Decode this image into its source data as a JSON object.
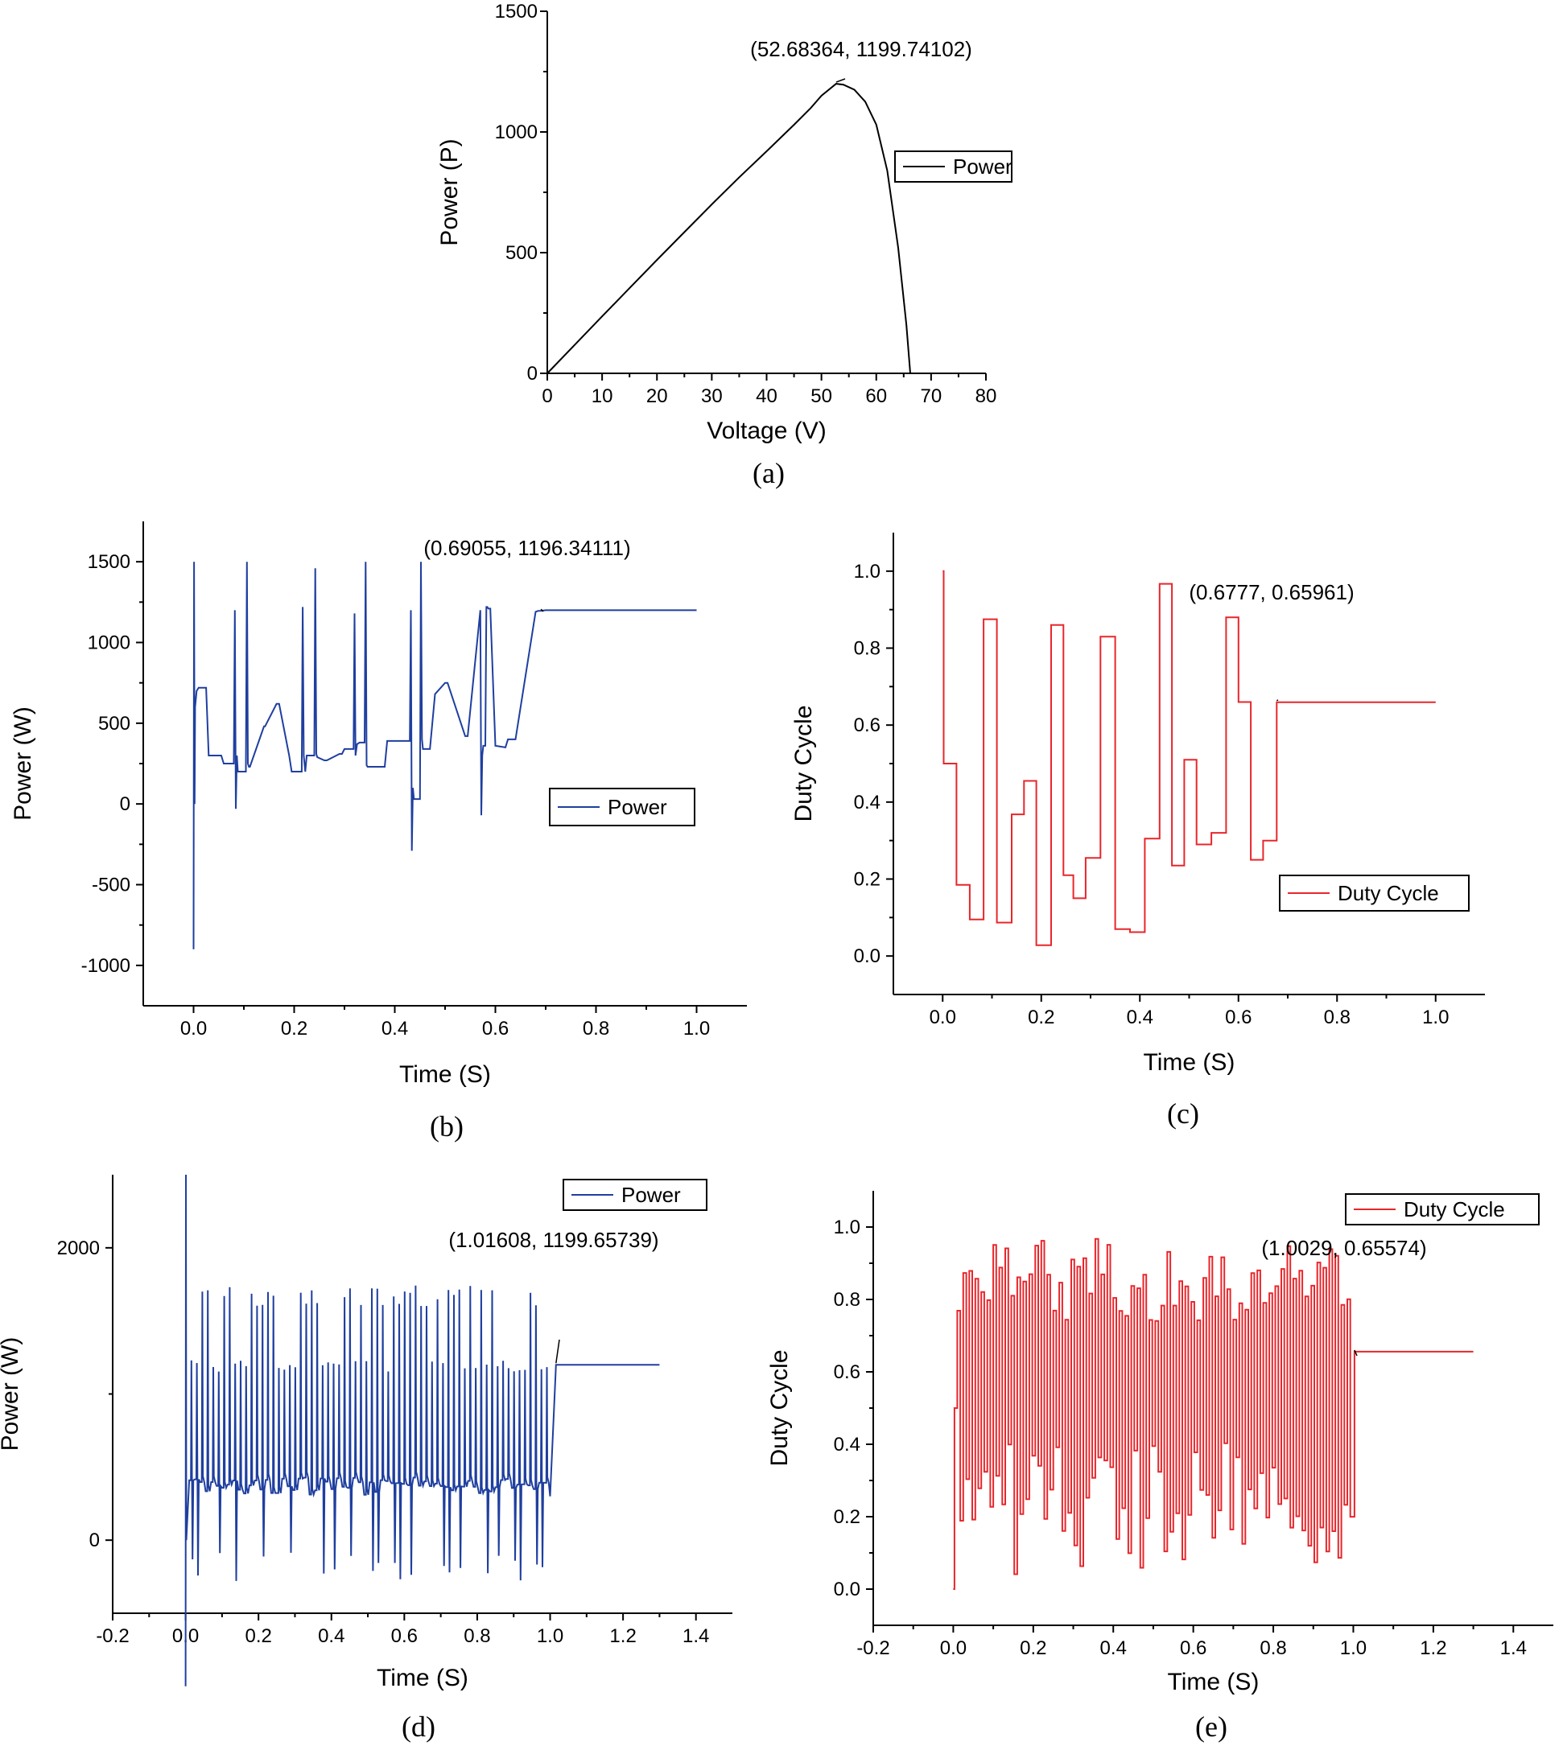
{
  "chart_data": [
    {
      "id": "a",
      "type": "line",
      "caption": "(a)",
      "xlabel": "Voltage (V)",
      "ylabel": "Power (P)",
      "xlim": [
        0,
        80
      ],
      "ylim": [
        0,
        1500
      ],
      "xticks": [
        0,
        10,
        20,
        30,
        40,
        50,
        60,
        70,
        80
      ],
      "xtick_labels": [
        "0",
        "10",
        "20",
        "30",
        "40",
        "50",
        "60",
        "70",
        "80"
      ],
      "yticks": [
        0,
        500,
        1000,
        1500
      ],
      "ytick_labels": [
        "0",
        "500",
        "1000",
        "1500"
      ],
      "legend_position": "right",
      "series": [
        {
          "name": "Power",
          "color": "#000000",
          "x": [
            0,
            5,
            10,
            15,
            20,
            25,
            30,
            35,
            40,
            45,
            48,
            50,
            52.68,
            54,
            56,
            58,
            60,
            62,
            64,
            65.5,
            66.2
          ],
          "y": [
            0,
            118,
            236,
            353,
            470,
            585,
            700,
            812,
            920,
            1030,
            1098,
            1150,
            1199.74,
            1196,
            1175,
            1125,
            1030,
            840,
            520,
            200,
            0
          ]
        }
      ],
      "annotation": {
        "text": "(52.68364, 1199.74102)",
        "x": 52.68364,
        "y": 1199.74102
      }
    },
    {
      "id": "b",
      "type": "line",
      "caption": "(b)",
      "xlabel": "Time (S)",
      "ylabel": "Power (W)",
      "xlim": [
        -0.1,
        1.1
      ],
      "ylim": [
        -1250,
        1750
      ],
      "xticks": [
        0.0,
        0.2,
        0.4,
        0.6,
        0.8,
        1.0
      ],
      "xtick_labels": [
        "0.0",
        "0.2",
        "0.4",
        "0.6",
        "0.8",
        "1.0"
      ],
      "yticks": [
        -1000,
        -500,
        0,
        500,
        1000,
        1500
      ],
      "ytick_labels": [
        "-1000",
        "-500",
        "0",
        "500",
        "1000",
        "1500"
      ],
      "legend_position": "center-right",
      "series": [
        {
          "name": "Power",
          "color": "#1f3f9f",
          "x": [
            0,
            0.001,
            0.002,
            0.003,
            0.006,
            0.01,
            0.025,
            0.03,
            0.055,
            0.06,
            0.08,
            0.082,
            0.084,
            0.086,
            0.088,
            0.09,
            0.104,
            0.106,
            0.108,
            0.11,
            0.112,
            0.14,
            0.142,
            0.165,
            0.17,
            0.19,
            0.195,
            0.215,
            0.217,
            0.219,
            0.222,
            0.225,
            0.24,
            0.242,
            0.244,
            0.246,
            0.26,
            0.265,
            0.29,
            0.295,
            0.3,
            0.318,
            0.32,
            0.322,
            0.325,
            0.33,
            0.34,
            0.342,
            0.344,
            0.346,
            0.38,
            0.385,
            0.43,
            0.432,
            0.434,
            0.436,
            0.438,
            0.44,
            0.45,
            0.452,
            0.454,
            0.456,
            0.46,
            0.47,
            0.48,
            0.5,
            0.505,
            0.54,
            0.545,
            0.57,
            0.572,
            0.574,
            0.576,
            0.58,
            0.582,
            0.584,
            0.586,
            0.59,
            0.6,
            0.62,
            0.625,
            0.64,
            0.68,
            0.685,
            0.69055,
            0.7,
            1.0
          ],
          "y": [
            -900,
            1500,
            0,
            600,
            700,
            720,
            720,
            300,
            300,
            250,
            250,
            1200,
            -30,
            300,
            200,
            200,
            200,
            1500,
            250,
            230,
            230,
            480,
            480,
            620,
            620,
            300,
            200,
            200,
            1220,
            300,
            200,
            300,
            300,
            1460,
            310,
            290,
            270,
            270,
            310,
            310,
            340,
            340,
            1180,
            300,
            370,
            380,
            380,
            1500,
            240,
            230,
            230,
            390,
            390,
            1200,
            -290,
            100,
            30,
            30,
            30,
            1500,
            400,
            340,
            340,
            340,
            680,
            750,
            750,
            420,
            420,
            1200,
            -70,
            300,
            360,
            360,
            1220,
            1220,
            1210,
            1210,
            360,
            350,
            400,
            400,
            1190,
            1196,
            1196.34,
            1200,
            1200
          ]
        }
      ],
      "annotation": {
        "text": "(0.69055, 1196.34111)",
        "x": 0.69055,
        "y": 1196.34111
      }
    },
    {
      "id": "c",
      "type": "line",
      "caption": "(c)",
      "xlabel": "Time (S)",
      "ylabel": "Duty Cycle",
      "xlim": [
        -0.1,
        1.1
      ],
      "ylim": [
        -0.1,
        1.1
      ],
      "xticks": [
        0.0,
        0.2,
        0.4,
        0.6,
        0.8,
        1.0
      ],
      "xtick_labels": [
        "0.0",
        "0.2",
        "0.4",
        "0.6",
        "0.8",
        "1.0"
      ],
      "yticks": [
        0.0,
        0.2,
        0.4,
        0.6,
        0.8,
        1.0
      ],
      "ytick_labels": [
        "0.0",
        "0.2",
        "0.4",
        "0.6",
        "0.8",
        "1.0"
      ],
      "legend_position": "bottom-right",
      "series": [
        {
          "name": "Duty Cycle",
          "color": "#e8262b",
          "step": true,
          "x": [
            0,
            0.002,
            0.028,
            0.055,
            0.083,
            0.11,
            0.14,
            0.165,
            0.19,
            0.22,
            0.245,
            0.265,
            0.29,
            0.32,
            0.35,
            0.38,
            0.41,
            0.44,
            0.465,
            0.49,
            0.515,
            0.545,
            0.575,
            0.6,
            0.625,
            0.65,
            0.6777,
            1.0
          ],
          "y": [
            1.0,
            0.5,
            0.185,
            0.095,
            0.875,
            0.087,
            0.368,
            0.455,
            0.028,
            0.86,
            0.21,
            0.15,
            0.255,
            0.83,
            0.07,
            0.062,
            0.305,
            0.967,
            0.235,
            0.51,
            0.29,
            0.32,
            0.88,
            0.66,
            0.25,
            0.3,
            0.65961,
            0.65961
          ]
        }
      ],
      "annotation": {
        "text": "(0.6777, 0.65961)",
        "x": 0.6777,
        "y": 0.65961
      }
    },
    {
      "id": "d",
      "type": "line",
      "caption": "(d)",
      "xlabel": "Time (S)",
      "ylabel": "Power (W)",
      "xlim": [
        -0.2,
        1.5
      ],
      "ylim": [
        -500,
        2500
      ],
      "xticks": [
        -0.2,
        0.0,
        0.2,
        0.4,
        0.6,
        0.8,
        1.0,
        1.2,
        1.4
      ],
      "xtick_labels": [
        "-0.2",
        "0.0",
        "0.2",
        "0.4",
        "0.6",
        "0.8",
        "1.0",
        "1.2",
        "1.4"
      ],
      "yticks": [
        0,
        2000
      ],
      "ytick_labels": [
        "0",
        "2000"
      ],
      "legend_position": "top-right",
      "series": [
        {
          "name": "Power",
          "color": "#1f3f9f",
          "x": [
            0,
            0.001,
            0.002,
            0.01,
            1.0,
            1.01608,
            1.3
          ],
          "y": [
            -1000,
            2500,
            0,
            600,
            300,
            1199.65739,
            1199.65739
          ],
          "oscillation": {
            "t_start": 0.01,
            "t_end": 1.0,
            "period": 0.015,
            "min": 250,
            "max": 1750,
            "dips": -280
          }
        }
      ],
      "annotation": {
        "text": "(1.01608, 1199.65739)",
        "x": 1.01608,
        "y": 1199.65739
      }
    },
    {
      "id": "e",
      "type": "line",
      "caption": "(e)",
      "xlabel": "Time (S)",
      "ylabel": "Duty Cycle",
      "xlim": [
        -0.2,
        1.5
      ],
      "ylim": [
        -0.1,
        1.1
      ],
      "xticks": [
        -0.2,
        0.0,
        0.2,
        0.4,
        0.6,
        0.8,
        1.0,
        1.2,
        1.4
      ],
      "xtick_labels": [
        "-0.2",
        "0.0",
        "0.2",
        "0.4",
        "0.6",
        "0.8",
        "1.0",
        "1.2",
        "1.4"
      ],
      "yticks": [
        0.0,
        0.2,
        0.4,
        0.6,
        0.8,
        1.0
      ],
      "ytick_labels": [
        "0.0",
        "0.2",
        "0.4",
        "0.6",
        "0.8",
        "1.0"
      ],
      "legend_position": "top-right",
      "series": [
        {
          "name": "Duty Cycle",
          "color": "#e8262b",
          "step": true,
          "x": [
            0,
            0.0029,
            1.0029,
            1.3
          ],
          "y": [
            0,
            0.5,
            0.65574,
            0.65574
          ],
          "oscillation": {
            "t_start": 0.01,
            "t_end": 1.0,
            "period": 0.015,
            "min": 0.04,
            "max": 0.97
          }
        }
      ],
      "annotation": {
        "text": "(1.0029, 0.65574)",
        "x": 1.0029,
        "y": 0.65574
      }
    }
  ]
}
